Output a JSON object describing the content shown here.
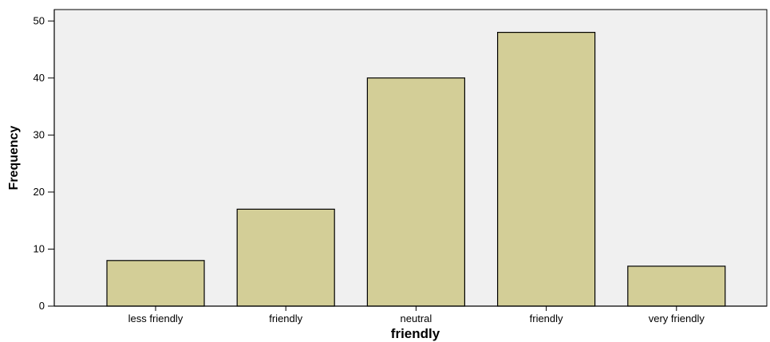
{
  "chart_data": {
    "type": "bar",
    "title": "",
    "xlabel": "friendly",
    "ylabel": "Frequency",
    "categories": [
      "less friendly",
      "friendly",
      "neutral",
      "friendly",
      "very friendly"
    ],
    "values": [
      8,
      17,
      40,
      48,
      7
    ],
    "ylim": [
      0,
      52
    ],
    "yticks": [
      0,
      10,
      20,
      30,
      40,
      50
    ],
    "grid": false,
    "legend": "none",
    "colors": {
      "plot_background": "#f0f0f0",
      "bar_fill": "#d3ce97",
      "bar_stroke": "#000000",
      "axis": "#000000"
    }
  }
}
